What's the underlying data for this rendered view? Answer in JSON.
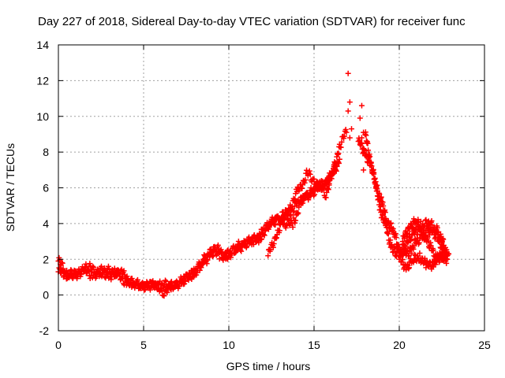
{
  "chart_data": {
    "type": "scatter",
    "title": "Day 227 of 2018, Sidereal Day-to-day VTEC variation (SDTVAR) for receiver func",
    "xlabel": "GPS time / hours",
    "ylabel": "SDTVAR / TECUs",
    "xlim": [
      0,
      25
    ],
    "ylim": [
      -2,
      14
    ],
    "xticks": [
      0,
      5,
      10,
      15,
      20,
      25
    ],
    "yticks": [
      -2,
      0,
      2,
      4,
      6,
      8,
      10,
      12,
      14
    ],
    "grid": true,
    "marker": "+",
    "color": "#ff0000",
    "series": [
      {
        "name": "SDTVAR",
        "curves": [
          [
            [
              0.0,
              1.3
            ],
            [
              0.3,
              1.2
            ],
            [
              0.6,
              1.1
            ],
            [
              1.0,
              1.2
            ],
            [
              1.5,
              1.3
            ],
            [
              2.0,
              1.2
            ],
            [
              2.5,
              1.1
            ],
            [
              3.0,
              1.2
            ],
            [
              3.5,
              1.0
            ],
            [
              4.0,
              0.8
            ],
            [
              4.5,
              0.6
            ],
            [
              5.0,
              0.6
            ],
            [
              5.5,
              0.5
            ],
            [
              6.0,
              0.6
            ],
            [
              6.5,
              0.5
            ],
            [
              7.0,
              0.7
            ],
            [
              7.5,
              0.9
            ],
            [
              8.0,
              1.3
            ],
            [
              8.5,
              1.8
            ],
            [
              9.0,
              2.4
            ],
            [
              9.5,
              2.2
            ],
            [
              10.0,
              2.3
            ],
            [
              10.5,
              2.6
            ],
            [
              11.0,
              2.9
            ],
            [
              11.5,
              3.1
            ],
            [
              12.0,
              3.5
            ],
            [
              12.5,
              4.1
            ],
            [
              13.0,
              4.3
            ],
            [
              13.5,
              4.6
            ],
            [
              14.0,
              5.0
            ],
            [
              14.5,
              5.6
            ],
            [
              15.0,
              5.9
            ],
            [
              15.5,
              6.2
            ],
            [
              16.0,
              6.6
            ],
            [
              16.5,
              7.6
            ]
          ],
          [
            [
              0.0,
              1.9
            ],
            [
              0.4,
              1.4
            ],
            [
              0.8,
              1.0
            ],
            [
              1.2,
              1.3
            ],
            [
              1.8,
              1.5
            ],
            [
              2.2,
              1.4
            ],
            [
              2.8,
              1.3
            ],
            [
              3.3,
              1.4
            ],
            [
              3.8,
              1.1
            ],
            [
              4.3,
              0.7
            ],
            [
              4.8,
              0.4
            ],
            [
              5.3,
              0.6
            ],
            [
              5.8,
              0.4
            ],
            [
              6.2,
              0.2
            ],
            [
              6.8,
              0.5
            ],
            [
              7.3,
              0.8
            ],
            [
              7.8,
              1.1
            ],
            [
              8.3,
              1.6
            ],
            [
              8.8,
              2.3
            ],
            [
              9.2,
              2.7
            ],
            [
              9.8,
              2.1
            ],
            [
              10.3,
              2.5
            ],
            [
              10.8,
              2.9
            ],
            [
              11.3,
              3.0
            ],
            [
              11.8,
              3.2
            ],
            [
              12.3,
              3.8
            ],
            [
              12.8,
              4.4
            ],
            [
              13.3,
              3.9
            ],
            [
              13.8,
              4.1
            ],
            [
              14.3,
              5.3
            ],
            [
              14.8,
              5.7
            ],
            [
              15.3,
              6.0
            ],
            [
              15.8,
              6.4
            ],
            [
              16.3,
              7.2
            ]
          ],
          [
            [
              12.3,
              2.2
            ],
            [
              12.8,
              3.4
            ],
            [
              13.2,
              4.3
            ],
            [
              13.6,
              4.9
            ],
            [
              14.0,
              5.7
            ],
            [
              14.3,
              6.2
            ],
            [
              14.6,
              6.8
            ],
            [
              15.0,
              6.4
            ],
            [
              15.3,
              6.1
            ],
            [
              15.7,
              5.7
            ],
            [
              16.1,
              6.8
            ],
            [
              16.5,
              8.4
            ],
            [
              16.9,
              9.1
            ]
          ]
        ],
        "peak": [
          [
            17.0,
            12.4
          ],
          [
            17.1,
            10.8
          ],
          [
            17.0,
            10.3
          ],
          [
            17.2,
            9.3
          ],
          [
            17.1,
            8.8
          ],
          [
            17.8,
            10.6
          ],
          [
            17.7,
            9.9
          ],
          [
            17.9,
            9.1
          ],
          [
            17.8,
            8.8
          ],
          [
            17.9,
            8.2
          ],
          [
            18.0,
            7.8
          ],
          [
            17.9,
            7.0
          ]
        ],
        "decline": [
          [
            [
              17.6,
              8.6
            ],
            [
              18.0,
              8.0
            ],
            [
              18.4,
              7.0
            ],
            [
              18.7,
              6.0
            ],
            [
              19.0,
              5.0
            ],
            [
              19.3,
              4.2
            ],
            [
              19.7,
              3.4
            ],
            [
              20.0,
              2.6
            ],
            [
              20.3,
              2.2
            ],
            [
              20.7,
              2.6
            ],
            [
              21.2,
              3.2
            ],
            [
              21.7,
              3.7
            ],
            [
              22.2,
              3.3
            ],
            [
              22.6,
              2.6
            ],
            [
              22.8,
              2.2
            ]
          ],
          [
            [
              18.0,
              9.0
            ],
            [
              18.3,
              7.6
            ],
            [
              18.6,
              6.2
            ],
            [
              18.9,
              4.8
            ],
            [
              19.2,
              3.8
            ],
            [
              19.5,
              2.9
            ],
            [
              19.8,
              2.2
            ],
            [
              20.3,
              2.7
            ],
            [
              20.8,
              3.4
            ],
            [
              21.3,
              3.9
            ],
            [
              21.8,
              4.0
            ],
            [
              22.3,
              3.5
            ],
            [
              22.8,
              2.4
            ]
          ],
          [
            [
              20.2,
              3.0
            ],
            [
              20.6,
              3.9
            ],
            [
              21.0,
              4.1
            ],
            [
              21.4,
              3.5
            ],
            [
              21.8,
              2.7
            ],
            [
              22.2,
              2.1
            ],
            [
              22.6,
              2.0
            ],
            [
              22.9,
              2.3
            ]
          ],
          [
            [
              20.0,
              2.0
            ],
            [
              20.4,
              1.6
            ],
            [
              20.8,
              1.9
            ],
            [
              21.2,
              2.2
            ],
            [
              21.6,
              1.6
            ],
            [
              22.0,
              1.8
            ],
            [
              22.4,
              2.2
            ],
            [
              22.8,
              2.0
            ]
          ]
        ]
      }
    ]
  }
}
